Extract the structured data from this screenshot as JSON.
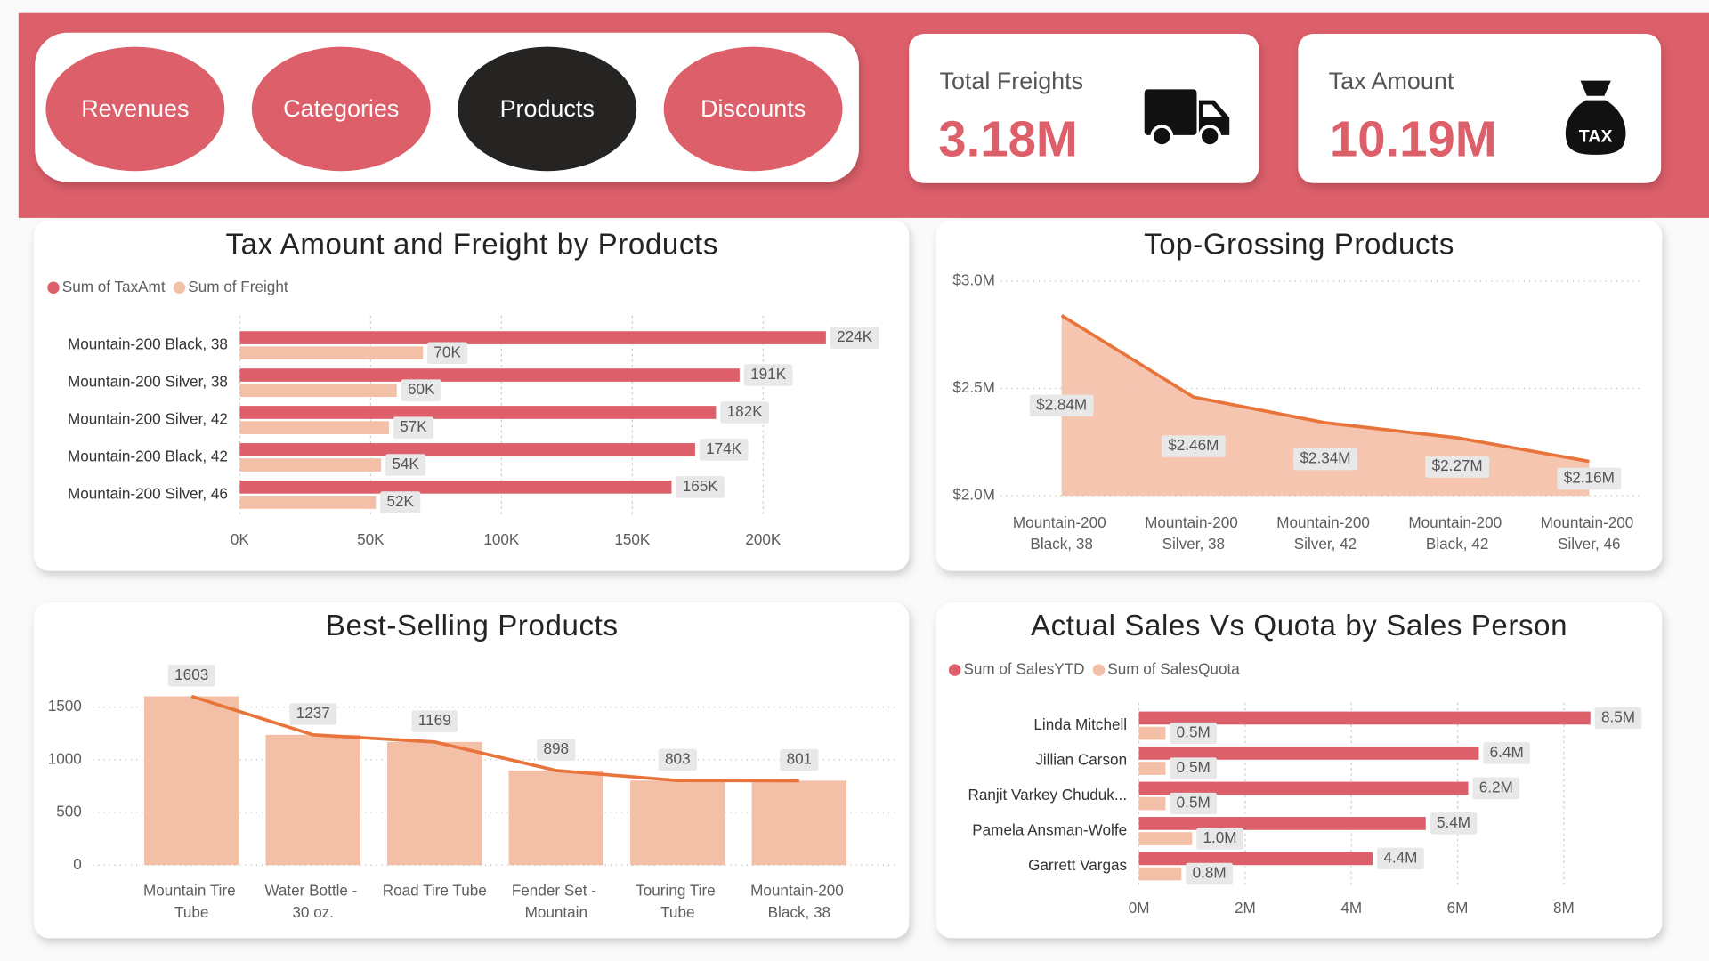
{
  "nav": {
    "buttons": [
      "Revenues",
      "Categories",
      "Products",
      "Discounts"
    ]
  },
  "kpis": [
    {
      "label": "Total Freights",
      "value": "3.18M"
    },
    {
      "label": "Tax Amount",
      "value": "10.19M",
      "icon_text": "TAX"
    }
  ],
  "chart_data": [
    {
      "type": "bar",
      "horizontal": true,
      "title": "Tax Amount and Freight by Products",
      "categories": [
        "Mountain-200 Black, 38",
        "Mountain-200 Silver, 38",
        "Mountain-200 Silver, 42",
        "Mountain-200 Black, 42",
        "Mountain-200 Silver, 46"
      ],
      "series": [
        {
          "name": "Sum of TaxAmt",
          "color": "#dc5f6a",
          "values": [
            224000,
            191000,
            182000,
            174000,
            165000
          ],
          "value_labels": [
            "224K",
            "191K",
            "182K",
            "174K",
            "165K"
          ]
        },
        {
          "name": "Sum of Freight",
          "color": "#f4bfa7",
          "values": [
            70000,
            60000,
            57000,
            54000,
            52000
          ],
          "value_labels": [
            "70K",
            "60K",
            "57K",
            "54K",
            "52K"
          ]
        }
      ],
      "xlim": [
        0,
        247000
      ],
      "xticks": [
        {
          "value": 0,
          "label": "0K"
        },
        {
          "value": 50000,
          "label": "50K"
        },
        {
          "value": 100000,
          "label": "100K"
        },
        {
          "value": 150000,
          "label": "150K"
        },
        {
          "value": 200000,
          "label": "200K"
        }
      ],
      "grid": true
    },
    {
      "type": "area",
      "title": "Top-Grossing Products",
      "categories": [
        "Mountain-200 Black, 38",
        "Mountain-200 Silver, 38",
        "Mountain-200 Silver, 42",
        "Mountain-200 Black, 42",
        "Mountain-200 Silver, 46"
      ],
      "values": [
        2840000,
        2460000,
        2340000,
        2270000,
        2160000
      ],
      "value_labels": [
        "$2.84M",
        "$2.46M",
        "$2.34M",
        "$2.27M",
        "$2.16M"
      ],
      "color": "#e8743b",
      "fill": "#f4bfa7",
      "ylim": [
        2000000,
        3000000
      ],
      "yticks": [
        {
          "value": 2000000,
          "label": "$2.0M"
        },
        {
          "value": 2500000,
          "label": "$2.5M"
        },
        {
          "value": 3000000,
          "label": "$3.0M"
        }
      ],
      "grid": true
    },
    {
      "type": "bar",
      "title": "Best-Selling Products",
      "categories": [
        "Mountain Tire Tube",
        "Water Bottle - 30 oz.",
        "Road Tire Tube",
        "Fender Set - Mountain",
        "Touring Tire Tube",
        "Mountain-200 Black, 38"
      ],
      "values": [
        1603,
        1237,
        1169,
        898,
        803,
        801
      ],
      "color": "#f4bfa7",
      "line_color": "#e8743b",
      "ylim": [
        0,
        1800
      ],
      "yticks": [
        0,
        500,
        1000,
        1500
      ],
      "grid": true
    },
    {
      "type": "bar",
      "horizontal": true,
      "title": "Actual Sales Vs Quota by Sales Person",
      "categories": [
        "Linda Mitchell",
        "Jillian Carson",
        "Ranjit Varkey Chuduk...",
        "Pamela Ansman-Wolfe",
        "Garrett Vargas"
      ],
      "series": [
        {
          "name": "Sum of SalesYTD",
          "color": "#dc5f6a",
          "values": [
            8500000,
            6400000,
            6200000,
            5400000,
            4400000
          ],
          "value_labels": [
            "8.5M",
            "6.4M",
            "6.2M",
            "5.4M",
            "4.4M"
          ]
        },
        {
          "name": "Sum of SalesQuota",
          "color": "#f4bfa7",
          "values": [
            500000,
            500000,
            500000,
            1000000,
            800000
          ],
          "value_labels": [
            "0.5M",
            "0.5M",
            "0.5M",
            "1.0M",
            "0.8M"
          ]
        }
      ],
      "xlim": [
        0,
        9400000
      ],
      "xticks": [
        {
          "value": 0,
          "label": "0M"
        },
        {
          "value": 2000000,
          "label": "2M"
        },
        {
          "value": 4000000,
          "label": "4M"
        },
        {
          "value": 6000000,
          "label": "6M"
        },
        {
          "value": 8000000,
          "label": "8M"
        }
      ],
      "grid": true
    }
  ]
}
